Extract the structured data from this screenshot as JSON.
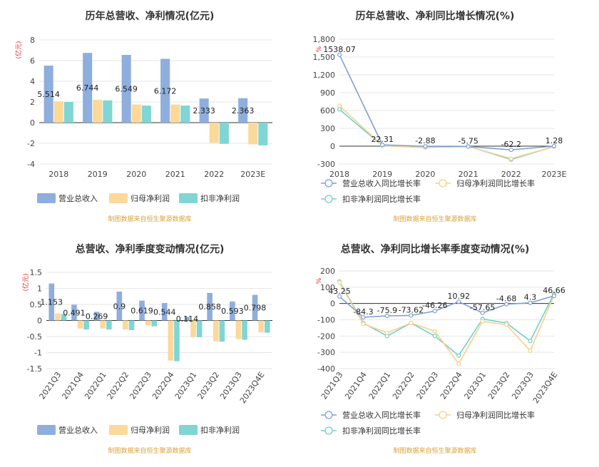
{
  "colors": {
    "revenue": "#8eaedd",
    "parent_profit": "#fcd899",
    "deducted_profit": "#7fd6d4",
    "grid": "#e6e6e6",
    "axis": "#555555",
    "unit_label": "#e8262b",
    "source": "#d9a23b"
  },
  "source_note": "制图数据来自恒生聚源数据库",
  "chart_data": [
    {
      "type": "bar",
      "title": "历年总营收、净利情况(亿元)",
      "ylabel": "(亿元)",
      "categories": [
        "2018",
        "2019",
        "2020",
        "2021",
        "2022",
        "2023E"
      ],
      "ylim": [
        -4,
        8
      ],
      "yticks": [
        "8",
        "6",
        "4",
        "2",
        "0",
        "-2",
        "-4"
      ],
      "series": [
        {
          "name": "营业总收入",
          "values": [
            5.514,
            6.744,
            6.549,
            6.172,
            2.333,
            2.363
          ],
          "labels": [
            "5.514",
            "6.744",
            "6.549",
            "6.172",
            "2.333",
            "2.363"
          ]
        },
        {
          "name": "归母净利润",
          "values": [
            2.05,
            2.2,
            1.75,
            1.75,
            -1.95,
            -2.1
          ]
        },
        {
          "name": "扣非净利润",
          "values": [
            2.0,
            2.15,
            1.65,
            1.65,
            -2.05,
            -2.2
          ]
        }
      ],
      "legend": [
        "营业总收入",
        "归母净利润",
        "扣非净利润"
      ],
      "legend_position": "bottom"
    },
    {
      "type": "line",
      "title": "历年总营收、净利同比增长情况(%)",
      "ylabel": "%",
      "categories": [
        "2018",
        "2019",
        "2020",
        "2021",
        "2022",
        "2023E"
      ],
      "ylim": [
        -300,
        1800
      ],
      "yticks": [
        "1,800",
        "1,500",
        "1,200",
        "900",
        "600",
        "300",
        "0",
        "-300"
      ],
      "series": [
        {
          "name": "营业总收入同比增长率",
          "values": [
            1538.07,
            22.31,
            -2.88,
            -5.75,
            -62.2,
            1.28
          ],
          "labels": [
            "1538.07",
            "22.31",
            "-2.88",
            "-5.75",
            "-62.2",
            "1.28"
          ]
        },
        {
          "name": "归母净利润同比增长率",
          "values": [
            680,
            10,
            -20,
            -5,
            -210,
            -8
          ]
        },
        {
          "name": "扣非净利润同比增长率",
          "values": [
            620,
            8,
            -22,
            -2,
            -225,
            -5
          ]
        }
      ],
      "legend": [
        "营业总收入同比增长率",
        "归母净利润同比增长率",
        "扣非净利润同比增长率"
      ],
      "legend_position": "bottom"
    },
    {
      "type": "bar",
      "title": "总营收、净利季度变动情况(亿元)",
      "ylabel": "(亿元)",
      "categories": [
        "2021Q3",
        "2021Q4",
        "2022Q1",
        "2022Q2",
        "2022Q3",
        "2022Q4",
        "2023Q1",
        "2023Q2",
        "2023Q3",
        "2023Q4E"
      ],
      "ylim": [
        -1.5,
        1.5
      ],
      "yticks": [
        "1.5",
        "1",
        "0.5",
        "0",
        "-0.5",
        "-1",
        "-1.5"
      ],
      "series": [
        {
          "name": "营业总收入",
          "values": [
            1.153,
            0.491,
            0.269,
            0.9,
            0.619,
            0.544,
            0.114,
            0.858,
            0.593,
            0.798
          ],
          "labels": [
            "1.153",
            "0.491",
            "0.269",
            "0.9",
            "0.619",
            "0.544",
            "0.114",
            "0.858",
            "0.593",
            "0.798"
          ]
        },
        {
          "name": "归母净利润",
          "values": [
            0.22,
            -0.25,
            -0.25,
            -0.28,
            -0.15,
            -1.25,
            -0.52,
            -0.65,
            -0.58,
            -0.37
          ]
        },
        {
          "name": "扣非净利润",
          "values": [
            0.2,
            -0.28,
            -0.28,
            -0.3,
            -0.18,
            -1.27,
            -0.52,
            -0.66,
            -0.6,
            -0.38
          ]
        }
      ],
      "legend": [
        "营业总收入",
        "归母净利润",
        "扣非净利润"
      ],
      "legend_position": "bottom"
    },
    {
      "type": "line",
      "title": "总营收、净利同比增长率季度变动情况(%)",
      "ylabel": "%",
      "categories": [
        "2021Q3",
        "2021Q4",
        "2022Q1",
        "2022Q2",
        "2022Q3",
        "2022Q4",
        "2023Q1",
        "2023Q2",
        "2023Q3",
        "2023Q4E"
      ],
      "ylim": [
        -400,
        200
      ],
      "yticks": [
        "200",
        "100",
        "0",
        "-100",
        "-200",
        "-300",
        "-400"
      ],
      "series": [
        {
          "name": "营业总收入同比增长率",
          "values": [
            43.25,
            -84.3,
            -75.9,
            -73.62,
            -46.26,
            10.92,
            -57.65,
            -4.68,
            4.3,
            46.66
          ],
          "labels": [
            "43.25",
            "-84.3",
            "-75.9",
            "-73.62",
            "-46.26",
            "10.92",
            "-57.65",
            "-4.68",
            "4.3",
            "46.66"
          ]
        },
        {
          "name": "归母净利润同比增长率",
          "values": [
            130,
            -125,
            -180,
            -120,
            -170,
            -370,
            -110,
            -130,
            -290,
            50
          ]
        },
        {
          "name": "扣非净利润同比增长率",
          "values": [
            135,
            -120,
            -200,
            -120,
            -200,
            -320,
            -95,
            -120,
            -230,
            60
          ]
        }
      ],
      "legend": [
        "营业总收入同比增长率",
        "归母净利润同比增长率",
        "扣非净利润同比增长率"
      ],
      "legend_position": "bottom"
    }
  ]
}
